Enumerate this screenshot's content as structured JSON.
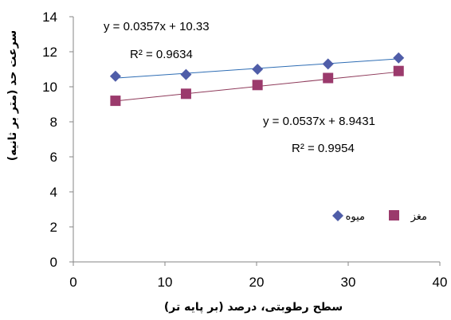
{
  "chart_data": {
    "type": "scatter",
    "xlabel": "سطح رطوبتی، درصد (بر پایه تر)",
    "ylabel": "سرعت حد (متر بر ثانیه)",
    "xlim": [
      0,
      40
    ],
    "ylim": [
      0,
      14
    ],
    "x_ticks": [
      "0",
      "10",
      "20",
      "30",
      "40"
    ],
    "y_ticks": [
      "0",
      "2",
      "4",
      "6",
      "8",
      "10",
      "12",
      "14"
    ],
    "grid": false,
    "legend_position": "lower-right",
    "series": [
      {
        "name": "میوه",
        "marker": "diamond",
        "color": "#4F5DA8",
        "x": [
          4.6,
          12.3,
          20.1,
          27.8,
          35.5
        ],
        "y": [
          10.6,
          10.7,
          11.0,
          11.3,
          11.65
        ],
        "trendline": {
          "slope": 0.0357,
          "intercept": 10.33,
          "color": "#2E6DB4"
        },
        "equation": "y = 0.0357x + 10.33",
        "r2": "R² = 0.9634"
      },
      {
        "name": "مغز",
        "marker": "square",
        "color": "#9B3A6C",
        "x": [
          4.6,
          12.3,
          20.1,
          27.8,
          35.5
        ],
        "y": [
          9.2,
          9.6,
          10.1,
          10.5,
          10.9
        ],
        "trendline": {
          "slope": 0.0537,
          "intercept": 8.9431,
          "color": "#8E3A5A"
        },
        "equation": "y = 0.0537x + 8.9431",
        "r2": "R² = 0.9954"
      }
    ]
  }
}
